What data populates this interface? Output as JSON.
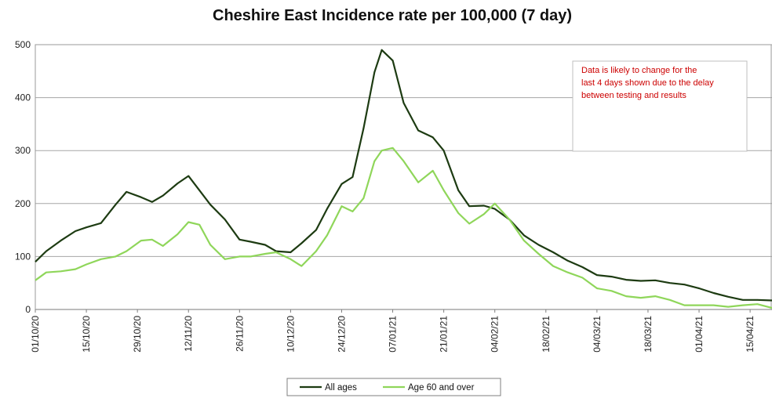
{
  "chart_data": {
    "type": "line",
    "title": "Cheshire East Incidence rate per 100,000 (7 day)",
    "xlabel": "",
    "ylabel": "",
    "ylim": [
      0,
      500
    ],
    "yticks": [
      0,
      100,
      200,
      300,
      400,
      500
    ],
    "xlim": [
      "2020-10-01",
      "2021-04-21"
    ],
    "xticks": [
      "01/10/20",
      "15/10/20",
      "29/10/20",
      "12/11/20",
      "26/11/20",
      "10/12/20",
      "24/12/20",
      "07/01/21",
      "21/01/21",
      "04/02/21",
      "18/02/21",
      "04/03/21",
      "18/03/21",
      "01/04/21",
      "15/04/21"
    ],
    "grid": "horizontal",
    "legend_position": "bottom",
    "annotation": [
      "Data is likely to change for the",
      "last 4 days shown due to the delay",
      "between  testing and results"
    ],
    "x": [
      "2020-10-01",
      "2020-10-04",
      "2020-10-08",
      "2020-10-12",
      "2020-10-15",
      "2020-10-19",
      "2020-10-23",
      "2020-10-26",
      "2020-10-30",
      "2020-11-02",
      "2020-11-05",
      "2020-11-09",
      "2020-11-12",
      "2020-11-15",
      "2020-11-18",
      "2020-11-22",
      "2020-11-26",
      "2020-11-29",
      "2020-12-03",
      "2020-12-06",
      "2020-12-10",
      "2020-12-13",
      "2020-12-17",
      "2020-12-20",
      "2020-12-24",
      "2020-12-27",
      "2020-12-30",
      "2021-01-02",
      "2021-01-04",
      "2021-01-07",
      "2021-01-10",
      "2021-01-14",
      "2021-01-18",
      "2021-01-21",
      "2021-01-25",
      "2021-01-28",
      "2021-02-01",
      "2021-02-04",
      "2021-02-08",
      "2021-02-12",
      "2021-02-16",
      "2021-02-20",
      "2021-02-24",
      "2021-02-28",
      "2021-03-04",
      "2021-03-08",
      "2021-03-12",
      "2021-03-16",
      "2021-03-20",
      "2021-03-24",
      "2021-03-28",
      "2021-04-01",
      "2021-04-05",
      "2021-04-09",
      "2021-04-13",
      "2021-04-17",
      "2021-04-21"
    ],
    "series": [
      {
        "name": "All ages",
        "color": "#1d3b12",
        "values": [
          90,
          110,
          130,
          148,
          155,
          163,
          198,
          222,
          212,
          203,
          215,
          238,
          252,
          225,
          198,
          170,
          132,
          128,
          122,
          110,
          108,
          125,
          150,
          190,
          237,
          250,
          342,
          448,
          490,
          470,
          390,
          338,
          325,
          300,
          225,
          195,
          196,
          190,
          170,
          140,
          122,
          108,
          92,
          80,
          65,
          62,
          56,
          54,
          55,
          50,
          47,
          40,
          31,
          24,
          18,
          18,
          17
        ]
      },
      {
        "name": "Age 60 and over",
        "color": "#8fd65a",
        "values": [
          55,
          70,
          72,
          76,
          85,
          95,
          100,
          110,
          130,
          132,
          120,
          142,
          165,
          160,
          122,
          95,
          100,
          100,
          105,
          108,
          95,
          82,
          110,
          140,
          195,
          185,
          210,
          280,
          300,
          305,
          280,
          240,
          262,
          225,
          182,
          162,
          180,
          200,
          170,
          130,
          105,
          82,
          70,
          60,
          40,
          35,
          25,
          22,
          25,
          18,
          8,
          8,
          8,
          5,
          8,
          10,
          3
        ]
      }
    ]
  }
}
